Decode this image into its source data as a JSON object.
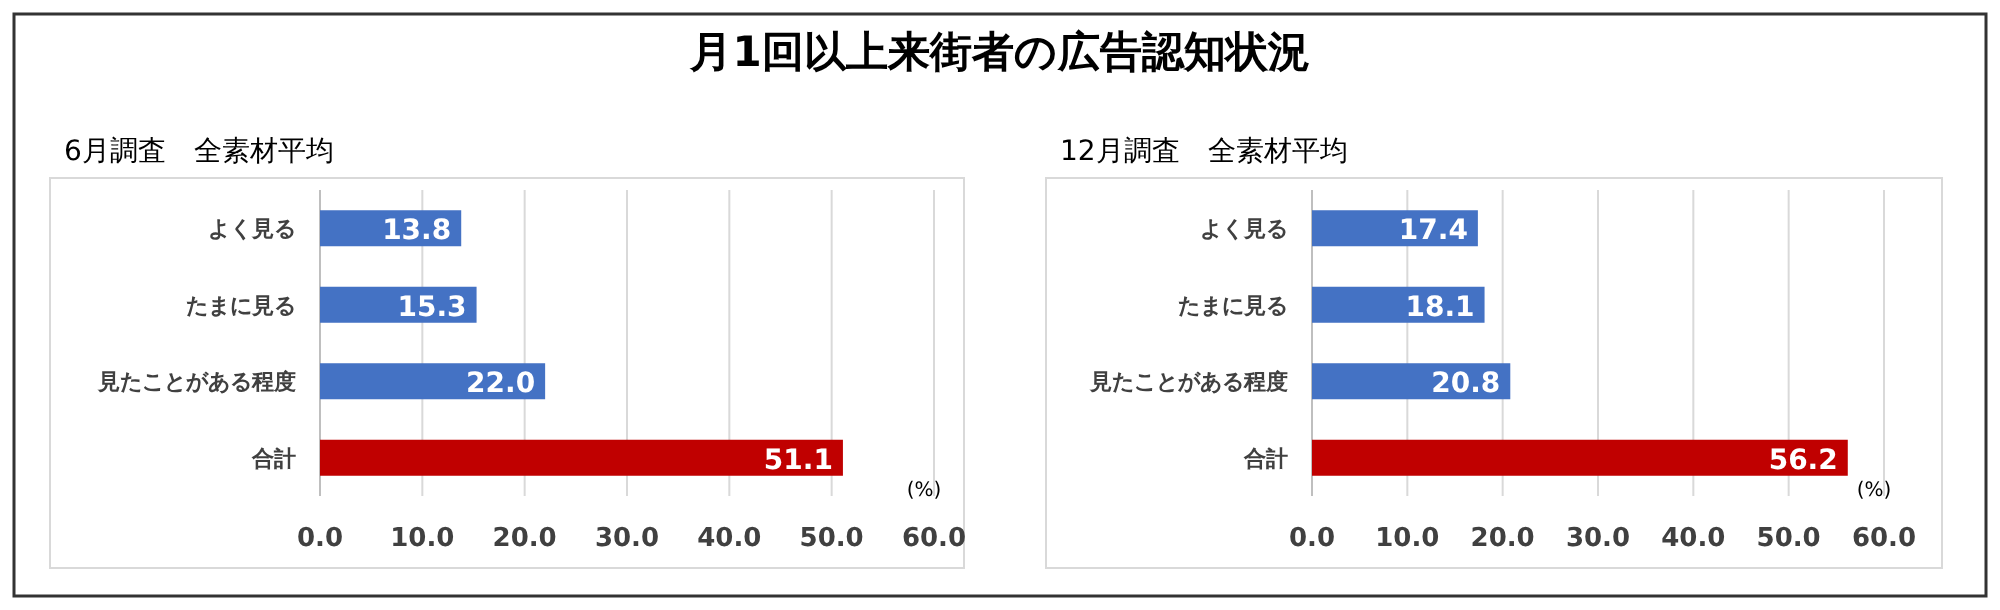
{
  "chart_data": [
    {
      "type": "bar",
      "title": "月1回以上来街者の広告認知状況",
      "subtitle": "6月調査　全素材平均",
      "xlabel": "(%)",
      "orientation": "horizontal",
      "categories": [
        "よく見る",
        "たまに見る",
        "見たことがある程度",
        "合計"
      ],
      "values": [
        13.8,
        15.3,
        22.0,
        51.1
      ],
      "value_labels": [
        "13.8",
        "15.3",
        "22.0",
        "51.1"
      ],
      "colors": [
        "#4472c4",
        "#4472c4",
        "#4472c4",
        "#c00000"
      ],
      "xlim": [
        0,
        60
      ],
      "xticks": [
        {
          "value": 0,
          "label": "0.0"
        },
        {
          "value": 10,
          "label": "10.0"
        },
        {
          "value": 20,
          "label": "20.0"
        },
        {
          "value": 30,
          "label": "30.0"
        },
        {
          "value": 40,
          "label": "40.0"
        },
        {
          "value": 50,
          "label": "50.0"
        },
        {
          "value": 60,
          "label": "60.0"
        }
      ],
      "grid": "x"
    },
    {
      "type": "bar",
      "subtitle": "12月調査　全素材平均",
      "xlabel": "(%)",
      "orientation": "horizontal",
      "categories": [
        "よく見る",
        "たまに見る",
        "見たことがある程度",
        "合計"
      ],
      "values": [
        17.4,
        18.1,
        20.8,
        56.2
      ],
      "value_labels": [
        "17.4",
        "18.1",
        "20.8",
        "56.2"
      ],
      "colors": [
        "#4472c4",
        "#4472c4",
        "#4472c4",
        "#c00000"
      ],
      "xlim": [
        0,
        60
      ],
      "xticks": [
        {
          "value": 0,
          "label": "0.0"
        },
        {
          "value": 10,
          "label": "10.0"
        },
        {
          "value": 20,
          "label": "20.0"
        },
        {
          "value": 30,
          "label": "30.0"
        },
        {
          "value": 40,
          "label": "40.0"
        },
        {
          "value": 50,
          "label": "50.0"
        },
        {
          "value": 60,
          "label": "60.0"
        }
      ],
      "grid": "x"
    }
  ]
}
